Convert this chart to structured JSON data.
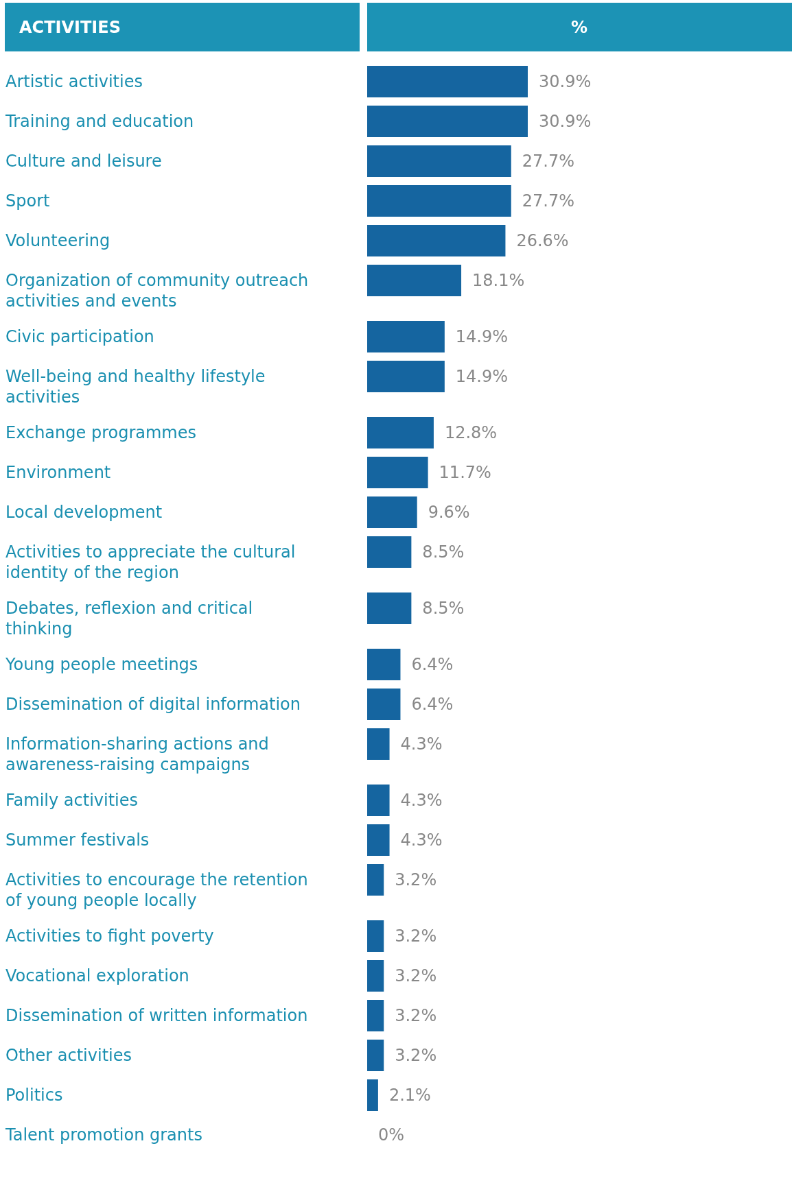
{
  "chart_data": {
    "type": "bar",
    "orientation": "horizontal",
    "ylabel": "ACTIVITIES",
    "xlabel": "%",
    "color": "#1565a0",
    "categories": [
      "Artistic activities",
      "Training and education",
      "Culture and leisure",
      "Sport",
      "Volunteering",
      "Organization of community outreach activities and events",
      "Civic participation",
      "Well-being and healthy lifestyle activities",
      "Exchange programmes",
      "Environment",
      "Local development",
      "Activities to appreciate the cultural identity of the region",
      "Debates, reflexion and critical thinking",
      "Young people meetings",
      "Dissemination of digital information",
      "Information-sharing actions and awareness-raising campaigns",
      "Family activities",
      "Summer festivals",
      "Activities to encourage the retention of young people locally",
      "Activities to fight poverty",
      "Vocational exploration",
      "Dissemination of written information",
      "Other activities",
      "Politics",
      "Talent promotion grants"
    ],
    "values": [
      30.9,
      30.9,
      27.7,
      27.7,
      26.6,
      18.1,
      14.9,
      14.9,
      12.8,
      11.7,
      9.6,
      8.5,
      8.5,
      6.4,
      6.4,
      4.3,
      4.3,
      4.3,
      3.2,
      3.2,
      3.2,
      3.2,
      3.2,
      2.1,
      0
    ],
    "value_labels": [
      "30.9%",
      "30.9%",
      "27.7%",
      "27.7%",
      "26.6%",
      "18.1%",
      "14.9%",
      "14.9%",
      "12.8%",
      "11.7%",
      "9.6%",
      "8.5%",
      "8.5%",
      "6.4%",
      "6.4%",
      "4.3%",
      "4.3%",
      "4.3%",
      "3.2%",
      "3.2%",
      "3.2%",
      "3.2%",
      "3.2%",
      "2.1%",
      "0%"
    ]
  }
}
